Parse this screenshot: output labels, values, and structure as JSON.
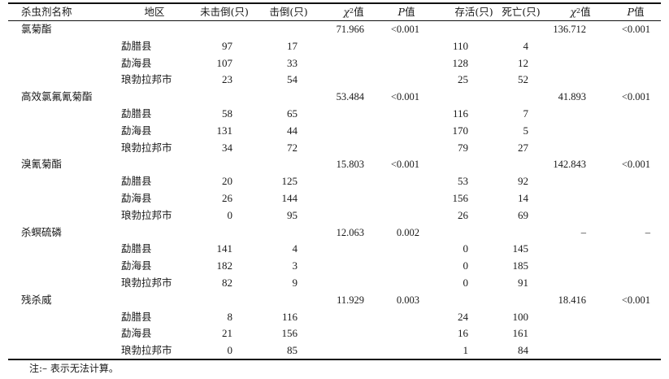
{
  "header": {
    "insecticide": "杀虫剂名称",
    "region": "地区",
    "not_knocked": "未击倒(只)",
    "knocked": "击倒(只)",
    "chi1_base": "χ",
    "chi1_sup": "2",
    "chi1_suffix": "值",
    "p1_letter": "P",
    "p1_suffix": "值",
    "alive": "存活(只)",
    "dead": "死亡(只)",
    "chi2_base": "χ",
    "chi2_sup": "2",
    "chi2_suffix": "值",
    "p2_letter": "P",
    "p2_suffix": "值"
  },
  "groups": [
    {
      "name": "氯菊酯",
      "chi_kd": "71.966",
      "p_kd": "<0.001",
      "chi_mort": "136.712",
      "p_mort": "<0.001",
      "rows": [
        {
          "region": "勐腊县",
          "not_knocked": "97",
          "knocked": "17",
          "alive": "110",
          "dead": "4"
        },
        {
          "region": "勐海县",
          "not_knocked": "107",
          "knocked": "33",
          "alive": "128",
          "dead": "12"
        },
        {
          "region": "琅勃拉邦市",
          "not_knocked": "23",
          "knocked": "54",
          "alive": "25",
          "dead": "52"
        }
      ]
    },
    {
      "name": "高效氯氟氰菊酯",
      "chi_kd": "53.484",
      "p_kd": "<0.001",
      "chi_mort": "41.893",
      "p_mort": "<0.001",
      "rows": [
        {
          "region": "勐腊县",
          "not_knocked": "58",
          "knocked": "65",
          "alive": "116",
          "dead": "7"
        },
        {
          "region": "勐海县",
          "not_knocked": "131",
          "knocked": "44",
          "alive": "170",
          "dead": "5"
        },
        {
          "region": "琅勃拉邦市",
          "not_knocked": "34",
          "knocked": "72",
          "alive": "79",
          "dead": "27"
        }
      ]
    },
    {
      "name": "溴氰菊酯",
      "chi_kd": "15.803",
      "p_kd": "<0.001",
      "chi_mort": "142.843",
      "p_mort": "<0.001",
      "rows": [
        {
          "region": "勐腊县",
          "not_knocked": "20",
          "knocked": "125",
          "alive": "53",
          "dead": "92"
        },
        {
          "region": "勐海县",
          "not_knocked": "26",
          "knocked": "144",
          "alive": "156",
          "dead": "14"
        },
        {
          "region": "琅勃拉邦市",
          "not_knocked": "0",
          "knocked": "95",
          "alive": "26",
          "dead": "69"
        }
      ]
    },
    {
      "name": "杀螟硫磷",
      "chi_kd": "12.063",
      "p_kd": "0.002",
      "chi_mort": "–",
      "p_mort": "–",
      "rows": [
        {
          "region": "勐腊县",
          "not_knocked": "141",
          "knocked": "4",
          "alive": "0",
          "dead": "145"
        },
        {
          "region": "勐海县",
          "not_knocked": "182",
          "knocked": "3",
          "alive": "0",
          "dead": "185"
        },
        {
          "region": "琅勃拉邦市",
          "not_knocked": "82",
          "knocked": "9",
          "alive": "0",
          "dead": "91"
        }
      ]
    },
    {
      "name": "残杀威",
      "chi_kd": "11.929",
      "p_kd": "0.003",
      "chi_mort": "18.416",
      "p_mort": "<0.001",
      "rows": [
        {
          "region": "勐腊县",
          "not_knocked": "8",
          "knocked": "116",
          "alive": "24",
          "dead": "100"
        },
        {
          "region": "勐海县",
          "not_knocked": "21",
          "knocked": "156",
          "alive": "16",
          "dead": "161"
        },
        {
          "region": "琅勃拉邦市",
          "not_knocked": "0",
          "knocked": "85",
          "alive": "1",
          "dead": "84"
        }
      ]
    }
  ],
  "footnote": "注:– 表示无法计算。"
}
